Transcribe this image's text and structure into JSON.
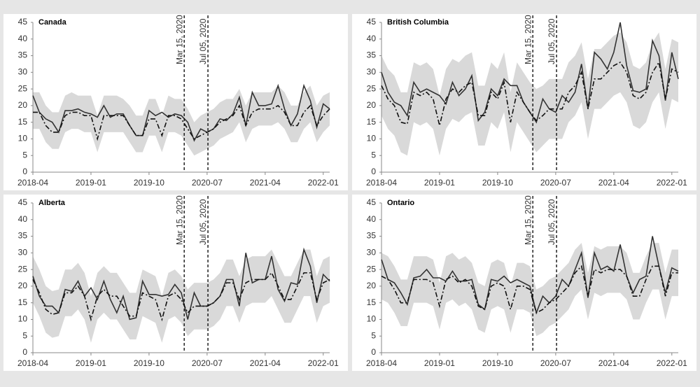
{
  "chart_data": [
    {
      "type": "line",
      "title": "Canada",
      "x": [
        "2018-04",
        "2018-05",
        "2018-06",
        "2018-07",
        "2018-08",
        "2018-09",
        "2018-10",
        "2018-11",
        "2018-12",
        "2019-01",
        "2019-02",
        "2019-03",
        "2019-04",
        "2019-05",
        "2019-06",
        "2019-07",
        "2019-08",
        "2019-09",
        "2019-10",
        "2019-11",
        "2019-12",
        "2020-01",
        "2020-02",
        "2020-03",
        "2020-04",
        "2020-05",
        "2020-06",
        "2020-07",
        "2020-08",
        "2020-09",
        "2020-10",
        "2020-11",
        "2020-12",
        "2021-01",
        "2021-02",
        "2021-03",
        "2021-04",
        "2021-05",
        "2021-06",
        "2021-07",
        "2021-08",
        "2021-09",
        "2021-10",
        "2021-11",
        "2021-12",
        "2022-01",
        "2022-02"
      ],
      "xlim": [
        "2018-04",
        "2022-02"
      ],
      "xticks": [
        "2018-04",
        "2019-01",
        "2019-10",
        "2020-07",
        "2021-04",
        "2022-01"
      ],
      "ylim": [
        0,
        45
      ],
      "yticks": [
        0,
        5,
        10,
        15,
        20,
        25,
        30,
        35,
        40,
        45
      ],
      "band": {
        "color": "#d9d9d9",
        "lower": [
          13,
          13,
          9,
          7,
          7,
          12,
          13,
          13,
          12,
          12,
          6,
          12,
          12,
          12,
          12,
          9,
          6,
          6,
          11,
          11,
          6,
          12,
          12,
          11,
          8,
          5,
          6,
          7,
          8,
          10,
          11,
          12,
          15,
          9,
          13,
          14,
          14,
          14,
          15,
          13,
          9,
          9,
          13,
          15,
          9,
          12,
          14
        ],
        "upper": [
          24,
          24,
          20,
          18,
          18,
          23,
          24,
          23,
          23,
          23,
          17,
          23,
          23,
          23,
          22,
          20,
          17,
          17,
          22,
          22,
          17,
          23,
          22,
          22,
          19,
          15,
          17,
          18,
          19,
          21,
          22,
          22,
          25,
          20,
          24,
          24,
          24,
          24,
          26,
          24,
          20,
          20,
          24,
          26,
          20,
          23,
          24
        ]
      },
      "series": [
        {
          "color": "#333333",
          "dash": "solid",
          "values": [
            23,
            18,
            16,
            15,
            12,
            18.5,
            18.5,
            19,
            18,
            17.5,
            16.5,
            20,
            16.5,
            17.5,
            17.5,
            14,
            11,
            11,
            18.5,
            17,
            18,
            16.5,
            17.5,
            17,
            15,
            9.5,
            13,
            12,
            13,
            16,
            15.5,
            17.5,
            22.5,
            14,
            24,
            20,
            20,
            20.5,
            26,
            19,
            14,
            17.5,
            26,
            21.5,
            13.5,
            20.5,
            19
          ]
        },
        {
          "color": "#111111",
          "dash": "dashdot",
          "values": [
            18,
            18,
            14,
            12,
            12,
            17,
            18,
            18,
            17,
            17,
            10,
            17,
            17,
            17,
            17,
            14,
            11,
            11,
            16,
            16,
            11,
            17,
            17,
            16,
            13,
            10,
            11,
            12,
            13,
            15,
            16,
            17,
            20,
            14,
            18,
            19,
            19,
            19,
            20,
            18,
            14,
            14,
            18,
            20,
            14,
            17,
            19
          ]
        }
      ],
      "annotations": [
        {
          "label": "Mar 15, 2020"
        },
        {
          "label": "Jul 05, 2020"
        }
      ]
    },
    {
      "type": "line",
      "title": "British Columbia",
      "x": [
        "2018-04",
        "2018-05",
        "2018-06",
        "2018-07",
        "2018-08",
        "2018-09",
        "2018-10",
        "2018-11",
        "2018-12",
        "2019-01",
        "2019-02",
        "2019-03",
        "2019-04",
        "2019-05",
        "2019-06",
        "2019-07",
        "2019-08",
        "2019-09",
        "2019-10",
        "2019-11",
        "2019-12",
        "2020-01",
        "2020-02",
        "2020-03",
        "2020-04",
        "2020-05",
        "2020-06",
        "2020-07",
        "2020-08",
        "2020-09",
        "2020-10",
        "2020-11",
        "2020-12",
        "2021-01",
        "2021-02",
        "2021-03",
        "2021-04",
        "2021-05",
        "2021-06",
        "2021-07",
        "2021-08",
        "2021-09",
        "2021-10",
        "2021-11",
        "2021-12",
        "2022-01",
        "2022-02"
      ],
      "xlim": [
        "2018-04",
        "2022-02"
      ],
      "xticks": [
        "2018-04",
        "2019-01",
        "2019-10",
        "2020-07",
        "2021-04",
        "2022-01"
      ],
      "ylim": [
        0,
        45
      ],
      "yticks": [
        0,
        5,
        10,
        15,
        20,
        25,
        30,
        35,
        40,
        45
      ],
      "band": {
        "color": "#d9d9d9",
        "lower": [
          17,
          13,
          11,
          6,
          5,
          15,
          14,
          15,
          13,
          5,
          13,
          16,
          15,
          17,
          18,
          8,
          8,
          15,
          13,
          18,
          6,
          15,
          12,
          9,
          6,
          8,
          10,
          10,
          10,
          15,
          17,
          21,
          10,
          19,
          19,
          21,
          23,
          24,
          21,
          14,
          13,
          15,
          21,
          24,
          13,
          22,
          21
        ],
        "upper": [
          35,
          31,
          29,
          24,
          24,
          33,
          32,
          33,
          31,
          23,
          31,
          34,
          33,
          35,
          36,
          26,
          26,
          33,
          31,
          36,
          24,
          33,
          30,
          27,
          25,
          26,
          28,
          28,
          28,
          33,
          35,
          39,
          28,
          37,
          37,
          39,
          41,
          42,
          39,
          32,
          31,
          33,
          39,
          42,
          31,
          40,
          39
        ]
      },
      "series": [
        {
          "color": "#333333",
          "dash": "solid",
          "values": [
            30,
            24,
            21,
            20,
            17,
            27,
            24,
            25,
            24,
            23,
            20.5,
            27,
            23,
            25,
            29,
            15.5,
            18,
            25,
            23,
            28,
            26,
            26,
            21,
            18,
            15,
            22,
            19,
            18,
            23,
            21,
            24,
            32.5,
            19,
            36,
            34,
            31,
            36,
            45,
            32,
            24.5,
            24,
            25,
            39.5,
            35,
            21.5,
            36,
            28
          ]
        },
        {
          "color": "#111111",
          "dash": "dashdot",
          "values": [
            26,
            22,
            20,
            15,
            14.5,
            24,
            23,
            24,
            22,
            14,
            22,
            25,
            24,
            26,
            27,
            17,
            17,
            24,
            22,
            27,
            15,
            24,
            21,
            18,
            15.5,
            17,
            19,
            19,
            19,
            24,
            26,
            30,
            19,
            28,
            28,
            30,
            32,
            33,
            30,
            23,
            22,
            24,
            30,
            33,
            22,
            31,
            30
          ]
        }
      ],
      "annotations": [
        {
          "label": "Mar 15, 2020"
        },
        {
          "label": "Jul 05, 2020"
        }
      ]
    },
    {
      "type": "line",
      "title": "Alberta",
      "x": [
        "2018-04",
        "2018-05",
        "2018-06",
        "2018-07",
        "2018-08",
        "2018-09",
        "2018-10",
        "2018-11",
        "2018-12",
        "2019-01",
        "2019-02",
        "2019-03",
        "2019-04",
        "2019-05",
        "2019-06",
        "2019-07",
        "2019-08",
        "2019-09",
        "2019-10",
        "2019-11",
        "2019-12",
        "2020-01",
        "2020-02",
        "2020-03",
        "2020-04",
        "2020-05",
        "2020-06",
        "2020-07",
        "2020-08",
        "2020-09",
        "2020-10",
        "2020-11",
        "2020-12",
        "2021-01",
        "2021-02",
        "2021-03",
        "2021-04",
        "2021-05",
        "2021-06",
        "2021-07",
        "2021-08",
        "2021-09",
        "2021-10",
        "2021-11",
        "2021-12",
        "2022-01",
        "2022-02"
      ],
      "xlim": [
        "2018-04",
        "2022-02"
      ],
      "xticks": [
        "2018-04",
        "2019-01",
        "2019-10",
        "2020-07",
        "2021-04",
        "2022-01"
      ],
      "ylim": [
        0,
        45
      ],
      "yticks": [
        0,
        5,
        10,
        15,
        20,
        25,
        30,
        35,
        40,
        45
      ],
      "band": {
        "color": "#d9d9d9",
        "lower": [
          15,
          11,
          6,
          4.5,
          5,
          11,
          11,
          13,
          10,
          3,
          10,
          12,
          10,
          10,
          7,
          4,
          4,
          11,
          10,
          9,
          3,
          10,
          11,
          9,
          5,
          7,
          7,
          7,
          8,
          10,
          14,
          14,
          9,
          14,
          15,
          15,
          15,
          17,
          13,
          9,
          9,
          13,
          17,
          17,
          9,
          14,
          15
        ],
        "upper": [
          29,
          25,
          20,
          18.5,
          19,
          25,
          25,
          27,
          24,
          17,
          24,
          26,
          24,
          24,
          21,
          18,
          18,
          25,
          24,
          23,
          17,
          24,
          25,
          23,
          19,
          21,
          21,
          21,
          22,
          24,
          28,
          28,
          23,
          28,
          29,
          29,
          29,
          31,
          27,
          23,
          23,
          27,
          31,
          31,
          23,
          28,
          29
        ]
      },
      "series": [
        {
          "color": "#333333",
          "dash": "solid",
          "values": [
            23,
            17,
            14,
            14,
            12,
            19,
            18.5,
            21.5,
            17,
            19.5,
            16,
            21.5,
            16,
            12,
            17,
            10,
            10.5,
            21.5,
            17.5,
            17.5,
            17,
            17.5,
            20.5,
            18,
            10,
            18,
            14,
            14,
            15,
            17,
            22,
            22,
            14,
            30,
            21,
            22,
            22,
            29,
            19,
            15.5,
            21,
            20.5,
            31,
            26,
            15,
            23.5,
            21.5
          ]
        },
        {
          "color": "#111111",
          "dash": "dashdot",
          "values": [
            22,
            18,
            13,
            11.5,
            12,
            18,
            18,
            20,
            17,
            10,
            17,
            19,
            17,
            17,
            14,
            11,
            11,
            18,
            17,
            16,
            10,
            17,
            18,
            16,
            12,
            14,
            14,
            14,
            15,
            17,
            21,
            21,
            16,
            21,
            22,
            22,
            22,
            24,
            20,
            16,
            16,
            20,
            24,
            24,
            16,
            21,
            22
          ]
        }
      ],
      "annotations": [
        {
          "label": "Mar 15, 2020"
        },
        {
          "label": "Jul 05, 2020"
        }
      ]
    },
    {
      "type": "line",
      "title": "Ontario",
      "x": [
        "2018-04",
        "2018-05",
        "2018-06",
        "2018-07",
        "2018-08",
        "2018-09",
        "2018-10",
        "2018-11",
        "2018-12",
        "2019-01",
        "2019-02",
        "2019-03",
        "2019-04",
        "2019-05",
        "2019-06",
        "2019-07",
        "2019-08",
        "2019-09",
        "2019-10",
        "2019-11",
        "2019-12",
        "2020-01",
        "2020-02",
        "2020-03",
        "2020-04",
        "2020-05",
        "2020-06",
        "2020-07",
        "2020-08",
        "2020-09",
        "2020-10",
        "2020-11",
        "2020-12",
        "2021-01",
        "2021-02",
        "2021-03",
        "2021-04",
        "2021-05",
        "2021-06",
        "2021-07",
        "2021-08",
        "2021-09",
        "2021-10",
        "2021-11",
        "2021-12",
        "2022-01",
        "2022-02"
      ],
      "xlim": [
        "2018-04",
        "2022-02"
      ],
      "xticks": [
        "2018-04",
        "2019-01",
        "2019-10",
        "2020-07",
        "2021-04",
        "2022-01"
      ],
      "ylim": [
        0,
        45
      ],
      "yticks": [
        0,
        5,
        10,
        15,
        20,
        25,
        30,
        35,
        40,
        45
      ],
      "band": {
        "color": "#d9d9d9",
        "lower": [
          16,
          15,
          12,
          8,
          8,
          15,
          15,
          15,
          14,
          7,
          15,
          16,
          14,
          15,
          13,
          7,
          6,
          13,
          14,
          13,
          6,
          13,
          13,
          12,
          5,
          6,
          8,
          9,
          11,
          13,
          17,
          19,
          10,
          18,
          17,
          18,
          18,
          18,
          16,
          10,
          10,
          15,
          19,
          19,
          10,
          17,
          17
        ],
        "upper": [
          30,
          29,
          26,
          22,
          22,
          29,
          29,
          29,
          28,
          21,
          29,
          30,
          28,
          29,
          27,
          21,
          20,
          27,
          28,
          27,
          20,
          27,
          27,
          26,
          19,
          20,
          22,
          23,
          25,
          27,
          31,
          33,
          24,
          32,
          31,
          32,
          32,
          32,
          30,
          24,
          24,
          29,
          33,
          33,
          24,
          31,
          31
        ]
      },
      "series": [
        {
          "color": "#333333",
          "dash": "solid",
          "values": [
            28,
            22,
            21,
            18,
            14.5,
            22.5,
            23,
            25,
            22.5,
            22.5,
            21.5,
            24.5,
            21.5,
            21.5,
            22,
            14.5,
            13,
            22,
            21.5,
            23,
            21,
            22,
            21,
            20,
            12,
            17,
            15,
            17,
            22,
            20,
            25,
            30,
            16.5,
            30,
            25,
            26,
            24.5,
            32.5,
            23,
            18,
            22,
            23,
            35,
            26,
            18,
            25.5,
            24.5
          ]
        },
        {
          "color": "#111111",
          "dash": "dashdot",
          "values": [
            23,
            22,
            19,
            15,
            15,
            22,
            22,
            22,
            21,
            14,
            22,
            23,
            21,
            22,
            20,
            14,
            13,
            20,
            21,
            20,
            13,
            20,
            20,
            19,
            12,
            13,
            15,
            16,
            18,
            20,
            24,
            26,
            17,
            25,
            24,
            25,
            25,
            25,
            23,
            17,
            17,
            22,
            26,
            26,
            17,
            24,
            24
          ]
        }
      ],
      "annotations": [
        {
          "label": "Mar 15, 2020"
        },
        {
          "label": "Jul 05, 2020"
        }
      ]
    }
  ]
}
